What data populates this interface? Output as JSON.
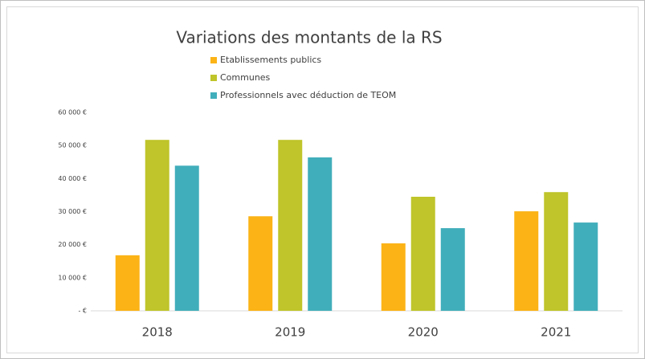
{
  "chart_data": {
    "type": "bar",
    "title": "Variations des montants de la RS",
    "categories": [
      "2018",
      "2019",
      "2020",
      "2021"
    ],
    "series": [
      {
        "name": "Etablissements publics",
        "color": "#fbb316",
        "values": [
          16800,
          28600,
          20400,
          30100
        ]
      },
      {
        "name": "Communes",
        "color": "#bfc52a",
        "values": [
          51700,
          51700,
          34500,
          35900
        ]
      },
      {
        "name": "Professionnels avec déduction de TEOM",
        "color": "#41aebb",
        "values": [
          43900,
          46400,
          25000,
          26700
        ]
      }
    ],
    "ylim": [
      0,
      60000
    ],
    "yticks": [
      {
        "value": 0,
        "label": "- €"
      },
      {
        "value": 10000,
        "label": "10 000 €"
      },
      {
        "value": 20000,
        "label": "20 000 €"
      },
      {
        "value": 30000,
        "label": "30 000 €"
      },
      {
        "value": 40000,
        "label": "40 000 €"
      },
      {
        "value": 50000,
        "label": "50 000 €"
      },
      {
        "value": 60000,
        "label": "60 000 €"
      }
    ],
    "grid": false,
    "legend": "top"
  }
}
